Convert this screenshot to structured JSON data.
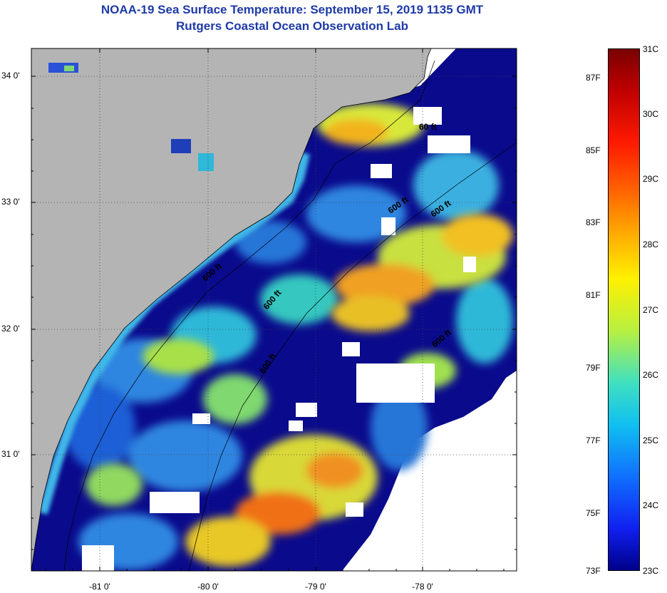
{
  "title": {
    "line1": "NOAA-19 Sea Surface Temperature:  September 15, 2019 1135 GMT",
    "line2": "Rutgers Coastal Ocean Observation Lab"
  },
  "map": {
    "lat_labels": [
      "34 0'",
      "33 0'",
      "32 0'",
      "31 0'"
    ],
    "lon_labels": [
      "-81 0'",
      "-80 0'",
      "-79 0'",
      "-78 0'"
    ],
    "contour_labels": [
      "60 ft",
      "600 ft",
      "600 ft",
      "600 ft",
      "600 ft",
      "600 ft",
      "600 ft"
    ],
    "colors": {
      "land": "#b4b4b4",
      "cloud": "#ffffff",
      "cold": "#0a0a8c"
    }
  },
  "colorbar": {
    "celsius_labels": [
      "31C",
      "30C",
      "29C",
      "28C",
      "27C",
      "26C",
      "25C",
      "24C",
      "23C"
    ],
    "fahrenheit_labels": [
      "87F",
      "85F",
      "83F",
      "81F",
      "79F",
      "77F",
      "75F",
      "73F"
    ],
    "celsius_values": [
      31,
      30,
      29,
      28,
      27,
      26,
      25,
      24,
      23
    ],
    "fahrenheit_values": [
      87,
      85,
      83,
      81,
      79,
      77,
      75,
      73
    ]
  }
}
